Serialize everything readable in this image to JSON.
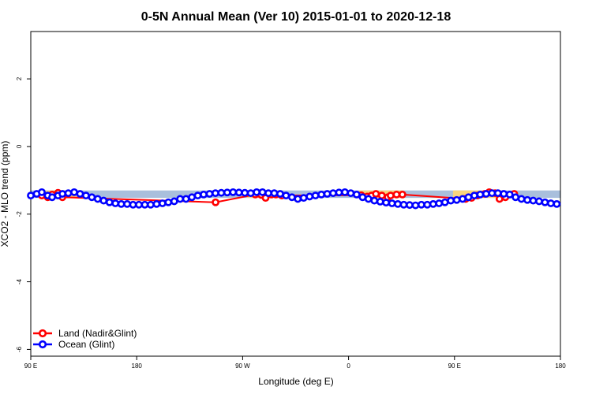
{
  "chart_data": {
    "type": "line",
    "title": "0-5N Annual Mean (Ver 10)   2015-01-01 to 2020-12-18",
    "xlabel": "Longitude (deg E)",
    "ylabel": "XCO2 - MLO trend (ppm)",
    "xlim": [
      90,
      450
    ],
    "ylim": [
      -6.2,
      3.4
    ],
    "x_ticks": [
      {
        "value": 90,
        "label": "90 E"
      },
      {
        "value": 162,
        "label": "180"
      },
      {
        "value": 234,
        "label": "90 W"
      },
      {
        "value": 306,
        "label": "0"
      },
      {
        "value": 378,
        "label": "90 E"
      },
      {
        "value": 450,
        "label": "180"
      }
    ],
    "y_ticks": [
      {
        "value": 2,
        "label": "2"
      },
      {
        "value": 0,
        "label": "0"
      },
      {
        "value": -2,
        "label": "-2"
      },
      {
        "value": -4,
        "label": "-4"
      },
      {
        "value": -6,
        "label": "-6"
      }
    ],
    "grid": false,
    "legend_position": "bottom-left",
    "band": {
      "y_top": -1.3,
      "y_bottom": -1.52,
      "ocean_color": "#a9bfdc",
      "land_color": "#f9d57d",
      "land_ranges": [
        [
          98,
          121
        ],
        [
          237,
          258
        ],
        [
          313,
          343
        ],
        [
          377,
          412
        ]
      ]
    },
    "series": [
      {
        "name": "Land (Nadir&Glint)",
        "color": "#ff0000",
        "x": [
          97.5,
          101.5,
          104.5,
          108.5,
          111.5,
          215.6,
          242.6,
          246.6,
          249.6,
          253.6,
          256.6,
          260.6,
          314.6,
          318.6,
          321.6,
          324.6,
          328.6,
          332.6,
          334.6,
          338.6,
          342.6,
          385.6,
          389.6,
          393.6,
          398.6,
          401.6,
          405.6,
          408.6,
          412.6,
          418.6
        ],
        "y": [
          -1.45,
          -1.5,
          -1.42,
          -1.37,
          -1.5,
          -1.65,
          -1.42,
          -1.43,
          -1.52,
          -1.42,
          -1.42,
          -1.45,
          -1.44,
          -1.48,
          -1.45,
          -1.4,
          -1.45,
          -1.5,
          -1.45,
          -1.42,
          -1.42,
          -1.55,
          -1.52,
          -1.45,
          -1.4,
          -1.35,
          -1.38,
          -1.55,
          -1.5,
          -1.4
        ]
      },
      {
        "name": "Ocean (Glint)",
        "color": "#0000ff",
        "x": [
          90,
          94,
          97.5,
          101.5,
          104.5,
          108.5,
          111.5,
          115.5,
          119.5,
          123.5,
          127.5,
          131.5,
          135.5,
          139.5,
          143.5,
          147.5,
          151.5,
          155.5,
          159.5,
          163.5,
          167.5,
          171.5,
          175.5,
          179.5,
          183.5,
          187.5,
          191.5,
          195.5,
          199.5,
          203.5,
          207.5,
          211.5,
          215.5,
          219.5,
          223.5,
          227.5,
          231.5,
          235.5,
          239.5,
          243.5,
          247.5,
          251.5,
          255.5,
          259.5,
          263.5,
          267.5,
          271.5,
          275.5,
          279.5,
          283.5,
          287.5,
          291.5,
          295.5,
          299.5,
          303.5,
          307.5,
          311.5,
          315.5,
          319.5,
          323.5,
          327.5,
          331.5,
          335.5,
          339.5,
          343.5,
          347.5,
          351.5,
          355.5,
          359.5,
          363.5,
          367.5,
          371.5,
          375.5,
          379.5,
          383.5,
          387.5,
          391.5,
          395.5,
          399.5,
          403.5,
          407.5,
          411.5,
          415.5,
          419.5,
          423.5,
          427.5,
          431.5,
          435.5,
          439.5,
          443.5,
          447.5
        ],
        "y": [
          -1.45,
          -1.4,
          -1.35,
          -1.45,
          -1.5,
          -1.45,
          -1.4,
          -1.38,
          -1.35,
          -1.4,
          -1.45,
          -1.5,
          -1.55,
          -1.6,
          -1.65,
          -1.68,
          -1.7,
          -1.7,
          -1.72,
          -1.72,
          -1.72,
          -1.72,
          -1.7,
          -1.68,
          -1.65,
          -1.62,
          -1.55,
          -1.55,
          -1.5,
          -1.45,
          -1.42,
          -1.4,
          -1.38,
          -1.37,
          -1.36,
          -1.35,
          -1.36,
          -1.37,
          -1.38,
          -1.35,
          -1.35,
          -1.38,
          -1.38,
          -1.4,
          -1.45,
          -1.5,
          -1.55,
          -1.52,
          -1.48,
          -1.45,
          -1.42,
          -1.4,
          -1.38,
          -1.36,
          -1.35,
          -1.38,
          -1.42,
          -1.5,
          -1.55,
          -1.6,
          -1.63,
          -1.66,
          -1.68,
          -1.7,
          -1.72,
          -1.73,
          -1.74,
          -1.72,
          -1.72,
          -1.7,
          -1.68,
          -1.65,
          -1.6,
          -1.58,
          -1.55,
          -1.5,
          -1.45,
          -1.42,
          -1.4,
          -1.38,
          -1.38,
          -1.4,
          -1.42,
          -1.5,
          -1.55,
          -1.58,
          -1.6,
          -1.62,
          -1.65,
          -1.68,
          -1.7
        ]
      }
    ]
  }
}
